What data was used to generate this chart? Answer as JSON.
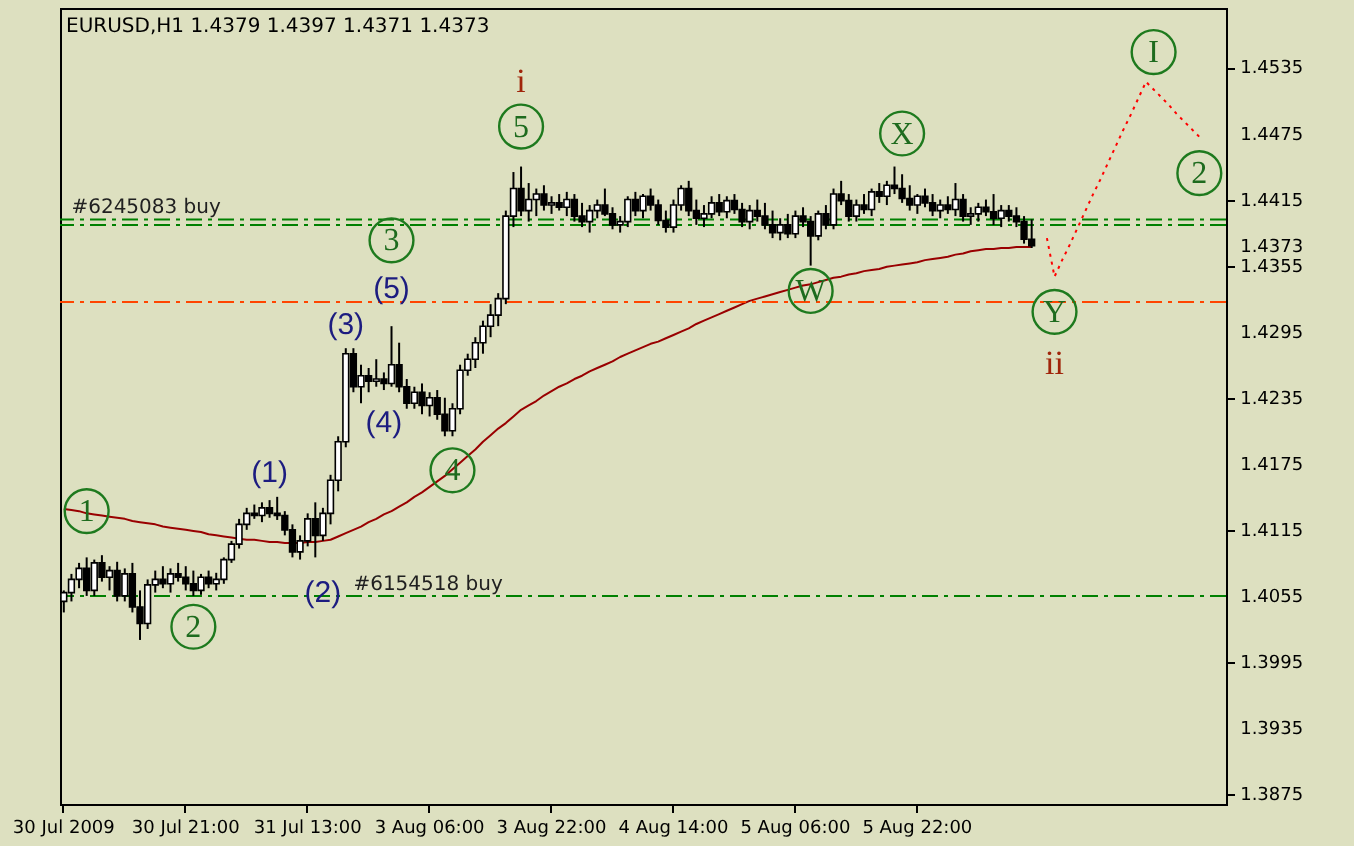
{
  "chart_data": {
    "type": "candlestick",
    "title": "EURUSD,H1 1.4379 1.4397 1.4371 1.4373",
    "categories": [
      "30 Jul 2009",
      null,
      null,
      null,
      null,
      null,
      null,
      null,
      null,
      null,
      null,
      null,
      null,
      null,
      null,
      null,
      "30 Jul 21:00",
      null,
      null,
      null,
      null,
      null,
      null,
      null,
      null,
      null,
      null,
      null,
      null,
      null,
      null,
      null,
      "31 Jul 13:00",
      null,
      null,
      null,
      null,
      null,
      null,
      null,
      null,
      null,
      null,
      null,
      null,
      null,
      null,
      null,
      "3 Aug 06:00",
      null,
      null,
      null,
      null,
      null,
      null,
      null,
      null,
      null,
      null,
      null,
      null,
      null,
      null,
      null,
      "3 Aug 22:00",
      null,
      null,
      null,
      null,
      null,
      null,
      null,
      null,
      null,
      null,
      null,
      null,
      null,
      null,
      null,
      "4 Aug 14:00",
      null,
      null,
      null,
      null,
      null,
      null,
      null,
      null,
      null,
      null,
      null,
      null,
      null,
      null,
      null,
      "5 Aug 06:00",
      null,
      null,
      null,
      null,
      null,
      null,
      null,
      null,
      null,
      null,
      null,
      null,
      null,
      null,
      null,
      "5 Aug 22:00",
      null,
      null,
      null,
      null,
      null,
      null,
      null,
      null,
      null,
      null,
      null,
      null,
      null,
      null,
      null,
      null,
      null,
      null,
      null,
      null,
      null,
      null,
      null,
      null,
      null,
      null,
      null,
      null,
      null,
      null,
      null,
      null,
      null,
      null,
      null,
      null,
      null,
      null,
      null,
      null
    ],
    "ohlc": [
      [
        1.405,
        1.406,
        1.404,
        1.4058
      ],
      [
        1.4058,
        1.4075,
        1.405,
        1.407
      ],
      [
        1.407,
        1.4085,
        1.4062,
        1.408
      ],
      [
        1.408,
        1.409,
        1.4055,
        1.406
      ],
      [
        1.406,
        1.4088,
        1.4055,
        1.4085
      ],
      [
        1.4085,
        1.4092,
        1.4068,
        1.4072
      ],
      [
        1.4072,
        1.4082,
        1.406,
        1.4078
      ],
      [
        1.4078,
        1.4086,
        1.405,
        1.4055
      ],
      [
        1.4055,
        1.408,
        1.405,
        1.4075
      ],
      [
        1.4075,
        1.4085,
        1.404,
        1.4045
      ],
      [
        1.4045,
        1.406,
        1.4015,
        1.403
      ],
      [
        1.403,
        1.407,
        1.4025,
        1.4065
      ],
      [
        1.4065,
        1.4078,
        1.4058,
        1.407
      ],
      [
        1.407,
        1.4082,
        1.4062,
        1.4066
      ],
      [
        1.4066,
        1.408,
        1.4058,
        1.4075
      ],
      [
        1.4075,
        1.4085,
        1.4068,
        1.4072
      ],
      [
        1.4072,
        1.4082,
        1.406,
        1.4066
      ],
      [
        1.4066,
        1.4078,
        1.4055,
        1.406
      ],
      [
        1.406,
        1.4075,
        1.4056,
        1.4072
      ],
      [
        1.4072,
        1.4078,
        1.4062,
        1.4066
      ],
      [
        1.4066,
        1.4076,
        1.406,
        1.407
      ],
      [
        1.407,
        1.409,
        1.4066,
        1.4088
      ],
      [
        1.4088,
        1.4105,
        1.4085,
        1.4102
      ],
      [
        1.4102,
        1.4125,
        1.4098,
        1.412
      ],
      [
        1.412,
        1.4135,
        1.4115,
        1.413
      ],
      [
        1.413,
        1.4138,
        1.4125,
        1.4128
      ],
      [
        1.4128,
        1.414,
        1.4122,
        1.4135
      ],
      [
        1.4135,
        1.4142,
        1.4126,
        1.413
      ],
      [
        1.413,
        1.4145,
        1.4124,
        1.4128
      ],
      [
        1.4128,
        1.4132,
        1.411,
        1.4115
      ],
      [
        1.4115,
        1.412,
        1.409,
        1.4095
      ],
      [
        1.4095,
        1.411,
        1.4088,
        1.4105
      ],
      [
        1.4105,
        1.413,
        1.41,
        1.4125
      ],
      [
        1.4125,
        1.414,
        1.409,
        1.411
      ],
      [
        1.411,
        1.4135,
        1.4105,
        1.413
      ],
      [
        1.413,
        1.4165,
        1.412,
        1.416
      ],
      [
        1.416,
        1.42,
        1.415,
        1.4195
      ],
      [
        1.4195,
        1.428,
        1.419,
        1.4275
      ],
      [
        1.4275,
        1.428,
        1.424,
        1.4245
      ],
      [
        1.4245,
        1.4265,
        1.423,
        1.4255
      ],
      [
        1.4255,
        1.4262,
        1.424,
        1.425
      ],
      [
        1.425,
        1.427,
        1.4245,
        1.4252
      ],
      [
        1.4252,
        1.4258,
        1.4242,
        1.4248
      ],
      [
        1.4248,
        1.43,
        1.4245,
        1.4265
      ],
      [
        1.4265,
        1.4285,
        1.424,
        1.4245
      ],
      [
        1.4245,
        1.4252,
        1.4225,
        1.423
      ],
      [
        1.423,
        1.4245,
        1.4225,
        1.424
      ],
      [
        1.424,
        1.4248,
        1.422,
        1.4228
      ],
      [
        1.4228,
        1.424,
        1.4218,
        1.4235
      ],
      [
        1.4235,
        1.4242,
        1.4215,
        1.422
      ],
      [
        1.422,
        1.4235,
        1.42,
        1.4205
      ],
      [
        1.4205,
        1.423,
        1.42,
        1.4225
      ],
      [
        1.4225,
        1.4265,
        1.422,
        1.426
      ],
      [
        1.426,
        1.4275,
        1.4255,
        1.427
      ],
      [
        1.427,
        1.429,
        1.4262,
        1.4285
      ],
      [
        1.4285,
        1.4305,
        1.4275,
        1.43
      ],
      [
        1.43,
        1.432,
        1.429,
        1.431
      ],
      [
        1.431,
        1.433,
        1.43,
        1.4325
      ],
      [
        1.4325,
        1.4405,
        1.432,
        1.44
      ],
      [
        1.44,
        1.444,
        1.439,
        1.4425
      ],
      [
        1.4425,
        1.4445,
        1.44,
        1.4405
      ],
      [
        1.4405,
        1.443,
        1.4395,
        1.4415
      ],
      [
        1.4415,
        1.4425,
        1.44,
        1.442
      ],
      [
        1.442,
        1.4428,
        1.4405,
        1.441
      ],
      [
        1.441,
        1.4418,
        1.4402,
        1.4412
      ],
      [
        1.4412,
        1.442,
        1.4405,
        1.4408
      ],
      [
        1.4408,
        1.4422,
        1.44,
        1.4415
      ],
      [
        1.4415,
        1.442,
        1.4395,
        1.44
      ],
      [
        1.44,
        1.4412,
        1.439,
        1.4395
      ],
      [
        1.4395,
        1.441,
        1.4385,
        1.4405
      ],
      [
        1.4405,
        1.4415,
        1.4398,
        1.441
      ],
      [
        1.441,
        1.4425,
        1.44,
        1.4402
      ],
      [
        1.4402,
        1.4408,
        1.4388,
        1.4392
      ],
      [
        1.4392,
        1.44,
        1.4385,
        1.4395
      ],
      [
        1.4395,
        1.4418,
        1.439,
        1.4415
      ],
      [
        1.4415,
        1.4422,
        1.44,
        1.4405
      ],
      [
        1.4405,
        1.442,
        1.4398,
        1.4418
      ],
      [
        1.4418,
        1.4425,
        1.4405,
        1.441
      ],
      [
        1.441,
        1.4415,
        1.4392,
        1.4396
      ],
      [
        1.4396,
        1.4405,
        1.4385,
        1.439
      ],
      [
        1.439,
        1.4415,
        1.4385,
        1.441
      ],
      [
        1.441,
        1.4428,
        1.4405,
        1.4425
      ],
      [
        1.4425,
        1.4432,
        1.44,
        1.4405
      ],
      [
        1.4405,
        1.4415,
        1.4392,
        1.4398
      ],
      [
        1.4398,
        1.441,
        1.439,
        1.4402
      ],
      [
        1.4402,
        1.4418,
        1.4398,
        1.4412
      ],
      [
        1.4412,
        1.442,
        1.44,
        1.4404
      ],
      [
        1.4404,
        1.4418,
        1.4398,
        1.4414
      ],
      [
        1.4414,
        1.442,
        1.4402,
        1.4406
      ],
      [
        1.4406,
        1.4412,
        1.439,
        1.4395
      ],
      [
        1.4395,
        1.441,
        1.4388,
        1.4405
      ],
      [
        1.4405,
        1.4415,
        1.4395,
        1.44
      ],
      [
        1.44,
        1.4412,
        1.4388,
        1.4392
      ],
      [
        1.4392,
        1.4405,
        1.438,
        1.4385
      ],
      [
        1.4385,
        1.4398,
        1.4378,
        1.4392
      ],
      [
        1.4392,
        1.4402,
        1.438,
        1.4384
      ],
      [
        1.4384,
        1.4405,
        1.438,
        1.44
      ],
      [
        1.44,
        1.4408,
        1.439,
        1.4395
      ],
      [
        1.4395,
        1.44,
        1.4355,
        1.4382
      ],
      [
        1.4382,
        1.4405,
        1.4378,
        1.4402
      ],
      [
        1.4402,
        1.441,
        1.4388,
        1.4392
      ],
      [
        1.4392,
        1.4425,
        1.4388,
        1.442
      ],
      [
        1.442,
        1.4432,
        1.441,
        1.4414
      ],
      [
        1.4414,
        1.442,
        1.4395,
        1.44
      ],
      [
        1.44,
        1.4415,
        1.4395,
        1.441
      ],
      [
        1.441,
        1.442,
        1.4402,
        1.4406
      ],
      [
        1.4406,
        1.4425,
        1.44,
        1.4422
      ],
      [
        1.4422,
        1.443,
        1.4412,
        1.4418
      ],
      [
        1.4418,
        1.4432,
        1.441,
        1.4428
      ],
      [
        1.4428,
        1.4445,
        1.442,
        1.4425
      ],
      [
        1.4425,
        1.4438,
        1.4412,
        1.4416
      ],
      [
        1.4416,
        1.4428,
        1.4405,
        1.441
      ],
      [
        1.441,
        1.442,
        1.4402,
        1.4418
      ],
      [
        1.4418,
        1.4425,
        1.4408,
        1.4412
      ],
      [
        1.4412,
        1.442,
        1.44,
        1.4405
      ],
      [
        1.4405,
        1.4415,
        1.4398,
        1.441
      ],
      [
        1.441,
        1.4418,
        1.4402,
        1.4406
      ],
      [
        1.4406,
        1.443,
        1.44,
        1.4415
      ],
      [
        1.4415,
        1.442,
        1.4395,
        1.44
      ],
      [
        1.44,
        1.4408,
        1.4392,
        1.4402
      ],
      [
        1.4402,
        1.4412,
        1.4395,
        1.4408
      ],
      [
        1.4408,
        1.4415,
        1.44,
        1.4404
      ],
      [
        1.4404,
        1.442,
        1.4392,
        1.4398
      ],
      [
        1.4398,
        1.441,
        1.439,
        1.4405
      ],
      [
        1.4405,
        1.441,
        1.4395,
        1.44
      ],
      [
        1.44,
        1.4408,
        1.439,
        1.4395
      ],
      [
        1.4395,
        1.44,
        1.4375,
        1.4379
      ],
      [
        1.4379,
        1.4397,
        1.4371,
        1.4373
      ],
      null,
      null,
      null,
      null,
      null,
      null,
      null,
      null,
      null,
      null,
      null,
      null,
      null,
      null,
      null,
      null,
      null,
      null,
      null,
      null,
      null,
      null,
      null,
      null,
      null
    ],
    "series": [
      {
        "type": "line",
        "color": "#990000",
        "line_style": "solid",
        "values": [
          1.4134,
          1.4133,
          1.4132,
          1.413,
          1.4129,
          1.4128,
          1.4127,
          1.4126,
          1.4125,
          1.4123,
          1.4122,
          1.4121,
          1.412,
          1.4118,
          1.4117,
          1.4116,
          1.4115,
          1.4114,
          1.4113,
          1.4111,
          1.411,
          1.4109,
          1.4108,
          1.4107,
          1.4106,
          1.4106,
          1.4105,
          1.4104,
          1.4104,
          1.4103,
          1.4103,
          1.4103,
          1.4104,
          1.4104,
          1.4105,
          1.4106,
          1.4109,
          1.4112,
          1.4115,
          1.4118,
          1.4122,
          1.4125,
          1.4129,
          1.4132,
          1.4136,
          1.414,
          1.4145,
          1.4149,
          1.4154,
          1.4159,
          1.4164,
          1.417,
          1.4176,
          1.4182,
          1.4188,
          1.4195,
          1.4201,
          1.4207,
          1.4212,
          1.4218,
          1.4224,
          1.4228,
          1.4232,
          1.4237,
          1.4241,
          1.4245,
          1.4248,
          1.4252,
          1.4255,
          1.4259,
          1.4262,
          1.4265,
          1.4268,
          1.4272,
          1.4275,
          1.4278,
          1.4281,
          1.4284,
          1.4286,
          1.4289,
          1.4292,
          1.4295,
          1.4298,
          1.4302,
          1.4305,
          1.4308,
          1.4311,
          1.4314,
          1.4317,
          1.432,
          1.4323,
          1.4325,
          1.4327,
          1.4329,
          1.4331,
          1.4333,
          1.4335,
          1.4337,
          1.4338,
          1.434,
          1.4342,
          1.4344,
          1.4345,
          1.4347,
          1.4348,
          1.435,
          1.4351,
          1.4352,
          1.4354,
          1.4355,
          1.4356,
          1.4357,
          1.4358,
          1.436,
          1.4361,
          1.4362,
          1.4363,
          1.4365,
          1.4366,
          1.4368,
          1.4369,
          1.437,
          1.437,
          1.4371,
          1.4371,
          1.4372,
          1.4372,
          1.4372,
          null,
          null,
          null,
          null,
          null,
          null,
          null,
          null,
          null,
          null,
          null,
          null,
          null,
          null,
          null,
          null,
          null,
          null,
          null,
          null,
          null,
          null,
          null,
          null,
          null
        ]
      },
      {
        "type": "line",
        "color": "#ff0000",
        "line_style": "dotted",
        "values": [
          null,
          null,
          null,
          null,
          null,
          null,
          null,
          null,
          null,
          null,
          null,
          null,
          null,
          null,
          null,
          null,
          null,
          null,
          null,
          null,
          null,
          null,
          null,
          null,
          null,
          null,
          null,
          null,
          null,
          null,
          null,
          null,
          null,
          null,
          null,
          null,
          null,
          null,
          null,
          null,
          null,
          null,
          null,
          null,
          null,
          null,
          null,
          null,
          null,
          null,
          null,
          null,
          null,
          null,
          null,
          null,
          null,
          null,
          null,
          null,
          null,
          null,
          null,
          null,
          null,
          null,
          null,
          null,
          null,
          null,
          null,
          null,
          null,
          null,
          null,
          null,
          null,
          null,
          null,
          null,
          null,
          null,
          null,
          null,
          null,
          null,
          null,
          null,
          null,
          null,
          null,
          null,
          null,
          null,
          null,
          null,
          null,
          null,
          null,
          null,
          null,
          null,
          null,
          null,
          null,
          null,
          null,
          null,
          null,
          null,
          null,
          null,
          null,
          null,
          null,
          null,
          null,
          null,
          null,
          null,
          null,
          null,
          null,
          null,
          null,
          null,
          null,
          null,
          null,
          1.438,
          1.4345,
          1.436,
          1.4374,
          1.4389,
          1.4404,
          1.4419,
          1.4433,
          1.4448,
          1.4463,
          1.4478,
          1.4492,
          1.4507,
          1.4522,
          1.4515,
          1.4508,
          1.4501,
          1.4493,
          1.4486,
          1.4479,
          1.4472,
          null,
          null,
          null
        ]
      }
    ],
    "ylim": [
      1.3866,
      1.4589
    ],
    "yticks": [
      1.3875,
      1.3935,
      1.3995,
      1.4055,
      1.4115,
      1.4175,
      1.4235,
      1.4295,
      1.4355,
      1.4373,
      1.4415,
      1.4475,
      1.4535
    ],
    "ref_lines": [
      {
        "axis": "y",
        "value": 1.4397,
        "label": "#6245083 buy",
        "color": "#008000",
        "line_style": "dashdot"
      },
      {
        "axis": "y",
        "value": 1.4392,
        "color": "#008000",
        "line_style": "dashdot"
      },
      {
        "axis": "y",
        "value": 1.4322,
        "color": "#ff4500",
        "line_style": "dashdot"
      },
      {
        "axis": "y",
        "value": 1.4055,
        "label": "#6154518 buy",
        "color": "#008000",
        "line_style": "dashdot"
      }
    ],
    "annotations": [
      "1",
      "2",
      "3",
      {
        "text": "4",
        "y": 1.42
      },
      {
        "text": "5",
        "y": 1.4445
      },
      "W",
      "X",
      "Y",
      "I",
      "2",
      "(1)",
      "(2)",
      {
        "text": "(3)",
        "y": 1.428
      },
      {
        "text": "(4)",
        "y": 1.4242
      },
      {
        "text": "(5)",
        "y": 1.43
      },
      "i",
      "ii"
    ]
  }
}
